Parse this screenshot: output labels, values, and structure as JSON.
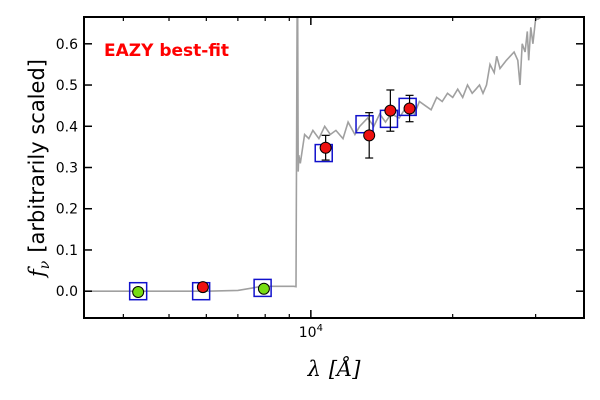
{
  "chart_data": {
    "type": "scatter",
    "annotation": "EAZY best-fit",
    "annotation_color": "#ff0000",
    "xlabel_symbol": "λ",
    "xlabel_unit": "[Å]",
    "ylabel_symbol": "f",
    "ylabel_subscript": "ν",
    "ylabel_text": "[arbitrarily scaled]",
    "xscale": "log",
    "xlim": [
      3300,
      38000
    ],
    "ylim": [
      -0.065,
      0.665
    ],
    "yticks": [
      0.0,
      0.1,
      0.2,
      0.3,
      0.4,
      0.5,
      0.6
    ],
    "ytick_labels": [
      "0.0",
      "0.1",
      "0.2",
      "0.3",
      "0.4",
      "0.5",
      "0.6"
    ],
    "xtick_base": "10",
    "xtick_exp": "4",
    "xtick_value": 10000,
    "minor_xticks": [
      4000,
      5000,
      6000,
      7000,
      8000,
      9000,
      20000,
      30000
    ],
    "colors": {
      "sed_line": "#a0a0a0",
      "model_box": "#1111cc",
      "detection_face": "#ee1111",
      "nondetection_face": "#77dd11",
      "marker_edge": "#000000"
    },
    "model_sed": {
      "name": "EAZY best-fit template",
      "x": [
        3300,
        4300,
        5000,
        6000,
        7000,
        7700,
        8200,
        8600,
        9200,
        9300,
        9350,
        9380,
        9400,
        9430,
        9500,
        9700,
        9900,
        10100,
        10400,
        10700,
        11000,
        11300,
        11700,
        12000,
        12400,
        12700,
        13200,
        13600,
        14000,
        14400,
        14800,
        15400,
        16000,
        16600,
        17000,
        17500,
        18000,
        18500,
        19000,
        19500,
        20000,
        20500,
        21000,
        21500,
        22000,
        22400,
        22800,
        23200,
        23600,
        24000,
        24500,
        24800,
        25200,
        25600,
        26000,
        26500,
        27000,
        27500,
        27800,
        28100,
        28500,
        28800,
        29000,
        29300,
        29600,
        30000,
        30400,
        30800
      ],
      "y": [
        0.0,
        0.0,
        0.0,
        0.0,
        0.002,
        0.01,
        0.012,
        0.012,
        0.012,
        0.011,
        0.665,
        0.665,
        0.29,
        0.33,
        0.31,
        0.38,
        0.37,
        0.39,
        0.37,
        0.4,
        0.38,
        0.39,
        0.37,
        0.41,
        0.38,
        0.4,
        0.42,
        0.4,
        0.43,
        0.41,
        0.43,
        0.42,
        0.45,
        0.43,
        0.46,
        0.45,
        0.44,
        0.47,
        0.46,
        0.48,
        0.47,
        0.49,
        0.47,
        0.5,
        0.48,
        0.49,
        0.5,
        0.48,
        0.5,
        0.55,
        0.53,
        0.57,
        0.54,
        0.55,
        0.56,
        0.57,
        0.58,
        0.56,
        0.5,
        0.6,
        0.58,
        0.63,
        0.56,
        0.64,
        0.6,
        0.66,
        0.66,
        0.665
      ]
    },
    "model_photometry": [
      {
        "x": 4300,
        "y": 0.0
      },
      {
        "x": 5850,
        "y": 0.0
      },
      {
        "x": 7900,
        "y": 0.008
      },
      {
        "x": 10650,
        "y": 0.335
      },
      {
        "x": 13000,
        "y": 0.405
      },
      {
        "x": 14650,
        "y": 0.418
      },
      {
        "x": 16050,
        "y": 0.447
      }
    ],
    "observed": [
      {
        "x": 4300,
        "y": -0.002,
        "yerr": 0.0,
        "detected": false
      },
      {
        "x": 5900,
        "y": 0.01,
        "yerr": 0.0,
        "detected": true
      },
      {
        "x": 7950,
        "y": 0.006,
        "yerr": 0.0,
        "detected": false
      },
      {
        "x": 10750,
        "y": 0.348,
        "yerr": 0.03,
        "detected": true
      },
      {
        "x": 13300,
        "y": 0.378,
        "yerr": 0.055,
        "detected": true
      },
      {
        "x": 14750,
        "y": 0.438,
        "yerr": 0.05,
        "detected": true
      },
      {
        "x": 16200,
        "y": 0.443,
        "yerr": 0.032,
        "detected": true
      }
    ]
  }
}
